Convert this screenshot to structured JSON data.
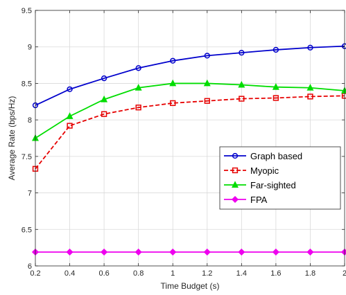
{
  "chart_data": {
    "type": "line",
    "title": "",
    "xlabel": "Time Budget (s)",
    "ylabel": "Average Rate (bps/Hz)",
    "xlim": [
      0.2,
      2
    ],
    "ylim": [
      6,
      9.5
    ],
    "grid": true,
    "legend_position": "center-right",
    "x": [
      0.2,
      0.4,
      0.6,
      0.8,
      1.0,
      1.2,
      1.4,
      1.6,
      1.8,
      2.0
    ],
    "xtick_labels": [
      "0.2",
      "0.4",
      "0.6",
      "0.8",
      "1",
      "1.2",
      "1.4",
      "1.6",
      "1.8",
      "2"
    ],
    "ytick_values": [
      6,
      6.5,
      7,
      7.5,
      8,
      8.5,
      9,
      9.5
    ],
    "ytick_labels": [
      "6",
      "6.5",
      "7",
      "7.5",
      "8",
      "8.5",
      "9",
      "9.5"
    ],
    "series": [
      {
        "name": "Graph based",
        "color": "#0000cc",
        "marker": "circle",
        "line": "solid",
        "values": [
          8.2,
          8.42,
          8.57,
          8.71,
          8.81,
          8.88,
          8.92,
          8.96,
          8.99,
          9.01
        ]
      },
      {
        "name": "Myopic",
        "color": "#e60000",
        "marker": "square",
        "line": "dashed",
        "values": [
          7.33,
          7.92,
          8.08,
          8.17,
          8.23,
          8.26,
          8.29,
          8.3,
          8.32,
          8.33
        ]
      },
      {
        "name": "Far-sighted",
        "color": "#00dd00",
        "marker": "triangle",
        "line": "solid",
        "values": [
          7.75,
          8.05,
          8.28,
          8.44,
          8.5,
          8.5,
          8.48,
          8.45,
          8.44,
          8.4
        ]
      },
      {
        "name": "FPA",
        "color": "#ee00ee",
        "marker": "diamond",
        "line": "solid",
        "values": [
          6.19,
          6.19,
          6.19,
          6.19,
          6.19,
          6.19,
          6.19,
          6.19,
          6.19,
          6.19
        ]
      }
    ]
  }
}
